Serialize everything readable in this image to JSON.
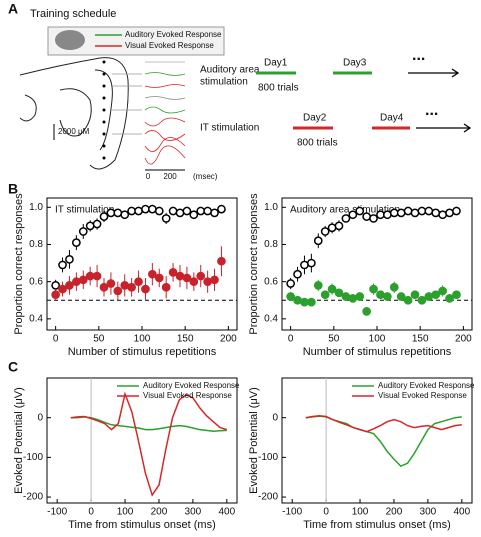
{
  "panel_a": {
    "label": "A",
    "title": "Training schedule",
    "legend": [
      {
        "name": "Auditory Evoked Response",
        "color": "#2ca02c"
      },
      {
        "name": "Visual Evoked Response",
        "color": "#d62728"
      }
    ],
    "scale_bar": "2000 μM",
    "time_ticks": [
      "0",
      "200"
    ],
    "time_unit": "(msec)",
    "schedule": [
      {
        "label": [
          "Auditory area",
          "stimulation"
        ],
        "days": [
          "Day1",
          "Day3"
        ],
        "trials": "800 trials",
        "ellipsis": "...",
        "color": "#2ca02c"
      },
      {
        "label": [
          "IT stimulation"
        ],
        "days": [
          "Day2",
          "Day4"
        ],
        "trials": "800 trials",
        "ellipsis": "...",
        "color": "#d62728"
      }
    ]
  },
  "panel_labels": [
    "B",
    "C"
  ],
  "chart_data": [
    {
      "type": "scatter",
      "annotation": "IT stimulation",
      "xlabel": "Number of stimulus repetitions",
      "ylabel": "Proportion correct responses",
      "x": [
        0,
        8,
        16,
        24,
        32,
        40,
        48,
        56,
        64,
        72,
        80,
        88,
        96,
        104,
        112,
        120,
        128,
        136,
        144,
        152,
        160,
        168,
        176,
        184,
        192
      ],
      "series": [
        {
          "color": "#000000",
          "marker": "open",
          "values": [
            0.58,
            0.69,
            0.72,
            0.81,
            0.87,
            0.9,
            0.91,
            0.95,
            0.97,
            0.97,
            0.96,
            0.98,
            0.98,
            0.99,
            0.99,
            0.98,
            0.94,
            0.98,
            0.97,
            0.98,
            0.96,
            0.98,
            0.98,
            0.97,
            0.99
          ],
          "errors": [
            0.03,
            0.04,
            0.05,
            0.04,
            0.04,
            0.03,
            0.03,
            0.03,
            0.02,
            0.02,
            0.02,
            0.02,
            0.02,
            0.01,
            0.01,
            0.02,
            0.03,
            0.02,
            0.02,
            0.02,
            0.02,
            0.02,
            0.02,
            0.02,
            0.01
          ]
        },
        {
          "color": "#c8232c",
          "marker": "filled",
          "values": [
            0.53,
            0.56,
            0.58,
            0.6,
            0.61,
            0.63,
            0.63,
            0.57,
            0.59,
            0.55,
            0.58,
            0.57,
            0.6,
            0.56,
            0.64,
            0.62,
            0.57,
            0.65,
            0.63,
            0.62,
            0.6,
            0.63,
            0.6,
            0.61,
            0.71
          ],
          "errors": [
            0.03,
            0.04,
            0.05,
            0.05,
            0.05,
            0.05,
            0.06,
            0.05,
            0.06,
            0.05,
            0.06,
            0.05,
            0.06,
            0.06,
            0.06,
            0.05,
            0.06,
            0.05,
            0.06,
            0.06,
            0.05,
            0.06,
            0.06,
            0.06,
            0.08
          ]
        }
      ],
      "hline": 0.5,
      "xlim": [
        -10,
        210
      ],
      "ylim": [
        0.34,
        1.05
      ],
      "xticks": [
        0,
        50,
        100,
        150,
        200
      ],
      "yticks": [
        0.4,
        0.6,
        0.8,
        {
          "value": 1,
          "label": "1.0"
        }
      ]
    },
    {
      "type": "scatter",
      "annotation": "Auditory area stimulation",
      "xlabel": "Number of stimulus repetitions",
      "ylabel": "Proportion correct responses",
      "x": [
        0,
        8,
        16,
        24,
        32,
        40,
        48,
        56,
        64,
        72,
        80,
        88,
        96,
        104,
        112,
        120,
        128,
        136,
        144,
        152,
        160,
        168,
        176,
        184,
        192
      ],
      "series": [
        {
          "color": "#000000",
          "marker": "open",
          "values": [
            0.59,
            0.64,
            0.69,
            0.7,
            0.82,
            0.87,
            0.89,
            0.9,
            0.94,
            0.96,
            0.98,
            0.95,
            0.94,
            0.96,
            0.96,
            0.97,
            0.97,
            0.98,
            0.97,
            0.98,
            0.98,
            0.97,
            0.96,
            0.97,
            0.98
          ],
          "errors": [
            0.03,
            0.04,
            0.05,
            0.05,
            0.04,
            0.03,
            0.03,
            0.03,
            0.02,
            0.02,
            0.02,
            0.02,
            0.02,
            0.02,
            0.01,
            0.02,
            0.02,
            0.02,
            0.02,
            0.02,
            0.02,
            0.02,
            0.02,
            0.02,
            0.01
          ]
        },
        {
          "color": "#2ca02c",
          "marker": "filled",
          "values": [
            0.52,
            0.5,
            0.49,
            0.49,
            0.58,
            0.53,
            0.56,
            0.54,
            0.52,
            0.51,
            0.52,
            0.44,
            0.56,
            0.53,
            0.52,
            0.57,
            0.52,
            0.5,
            0.53,
            0.5,
            0.52,
            0.53,
            0.55,
            0.51,
            0.53
          ],
          "errors": [
            0.02,
            0.02,
            0.02,
            0.02,
            0.03,
            0.02,
            0.03,
            0.02,
            0.02,
            0.02,
            0.02,
            0.02,
            0.03,
            0.02,
            0.02,
            0.03,
            0.02,
            0.02,
            0.02,
            0.02,
            0.02,
            0.02,
            0.03,
            0.02,
            0.02
          ]
        }
      ],
      "hline": 0.5,
      "xlim": [
        -10,
        210
      ],
      "ylim": [
        0.34,
        1.05
      ],
      "xticks": [
        0,
        50,
        100,
        150,
        200
      ],
      "yticks": [
        0.4,
        0.6,
        0.8,
        {
          "value": 1,
          "label": "1.0"
        }
      ]
    },
    {
      "type": "line",
      "xlabel": "Time from stimulus onset (ms)",
      "ylabel": "Evoked Potential (μV)",
      "x": [
        -60,
        -40,
        -20,
        0,
        20,
        40,
        60,
        80,
        100,
        120,
        140,
        160,
        180,
        200,
        220,
        240,
        260,
        280,
        300,
        320,
        340,
        360,
        380,
        400
      ],
      "series": [
        {
          "name": "Auditory Evoked Response",
          "color": "#2ca02c",
          "values": [
            0,
            0,
            2,
            0,
            -5,
            -12,
            -18,
            -20,
            -22,
            -24,
            -26,
            -30,
            -30,
            -28,
            -25,
            -22,
            -20,
            -22,
            -26,
            -30,
            -32,
            -34,
            -33,
            -32
          ]
        },
        {
          "name": "Visual Evoked Response",
          "color": "#d62728",
          "values": [
            0,
            2,
            3,
            -2,
            -8,
            -15,
            -30,
            -15,
            60,
            15,
            -60,
            -140,
            -195,
            -170,
            -80,
            0,
            45,
            58,
            50,
            25,
            5,
            -10,
            -25,
            -30
          ]
        }
      ],
      "vline": 0,
      "xlim": [
        -130,
        430
      ],
      "ylim": [
        -215,
        100
      ],
      "xticks": [
        -100,
        0,
        100,
        200,
        300,
        400
      ],
      "yticks": [
        -200,
        -100,
        0
      ]
    },
    {
      "type": "line",
      "xlabel": "Time from stimulus onset (ms)",
      "ylabel": "Evoked Potential (μV)",
      "x": [
        -60,
        -40,
        -20,
        0,
        20,
        40,
        60,
        80,
        100,
        120,
        140,
        160,
        180,
        200,
        220,
        240,
        260,
        280,
        300,
        320,
        340,
        360,
        380,
        400
      ],
      "series": [
        {
          "name": "Auditory Evoked Response",
          "color": "#2ca02c",
          "values": [
            0,
            2,
            4,
            2,
            -5,
            -10,
            -15,
            -25,
            -30,
            -35,
            -40,
            -60,
            -85,
            -105,
            -122,
            -115,
            -90,
            -60,
            -30,
            -15,
            -10,
            -5,
            0,
            2
          ]
        },
        {
          "name": "Visual Evoked Response",
          "color": "#d62728",
          "values": [
            0,
            3,
            5,
            3,
            -5,
            -12,
            -18,
            -25,
            -30,
            -35,
            -28,
            -20,
            -10,
            -5,
            -10,
            -20,
            -25,
            -22,
            -20,
            -25,
            -30,
            -25,
            -20,
            -18
          ]
        }
      ],
      "vline": 0,
      "xlim": [
        -130,
        430
      ],
      "ylim": [
        -215,
        100
      ],
      "xticks": [
        -100,
        0,
        100,
        200,
        300,
        400
      ],
      "yticks": [
        -200,
        -100,
        0
      ]
    }
  ]
}
